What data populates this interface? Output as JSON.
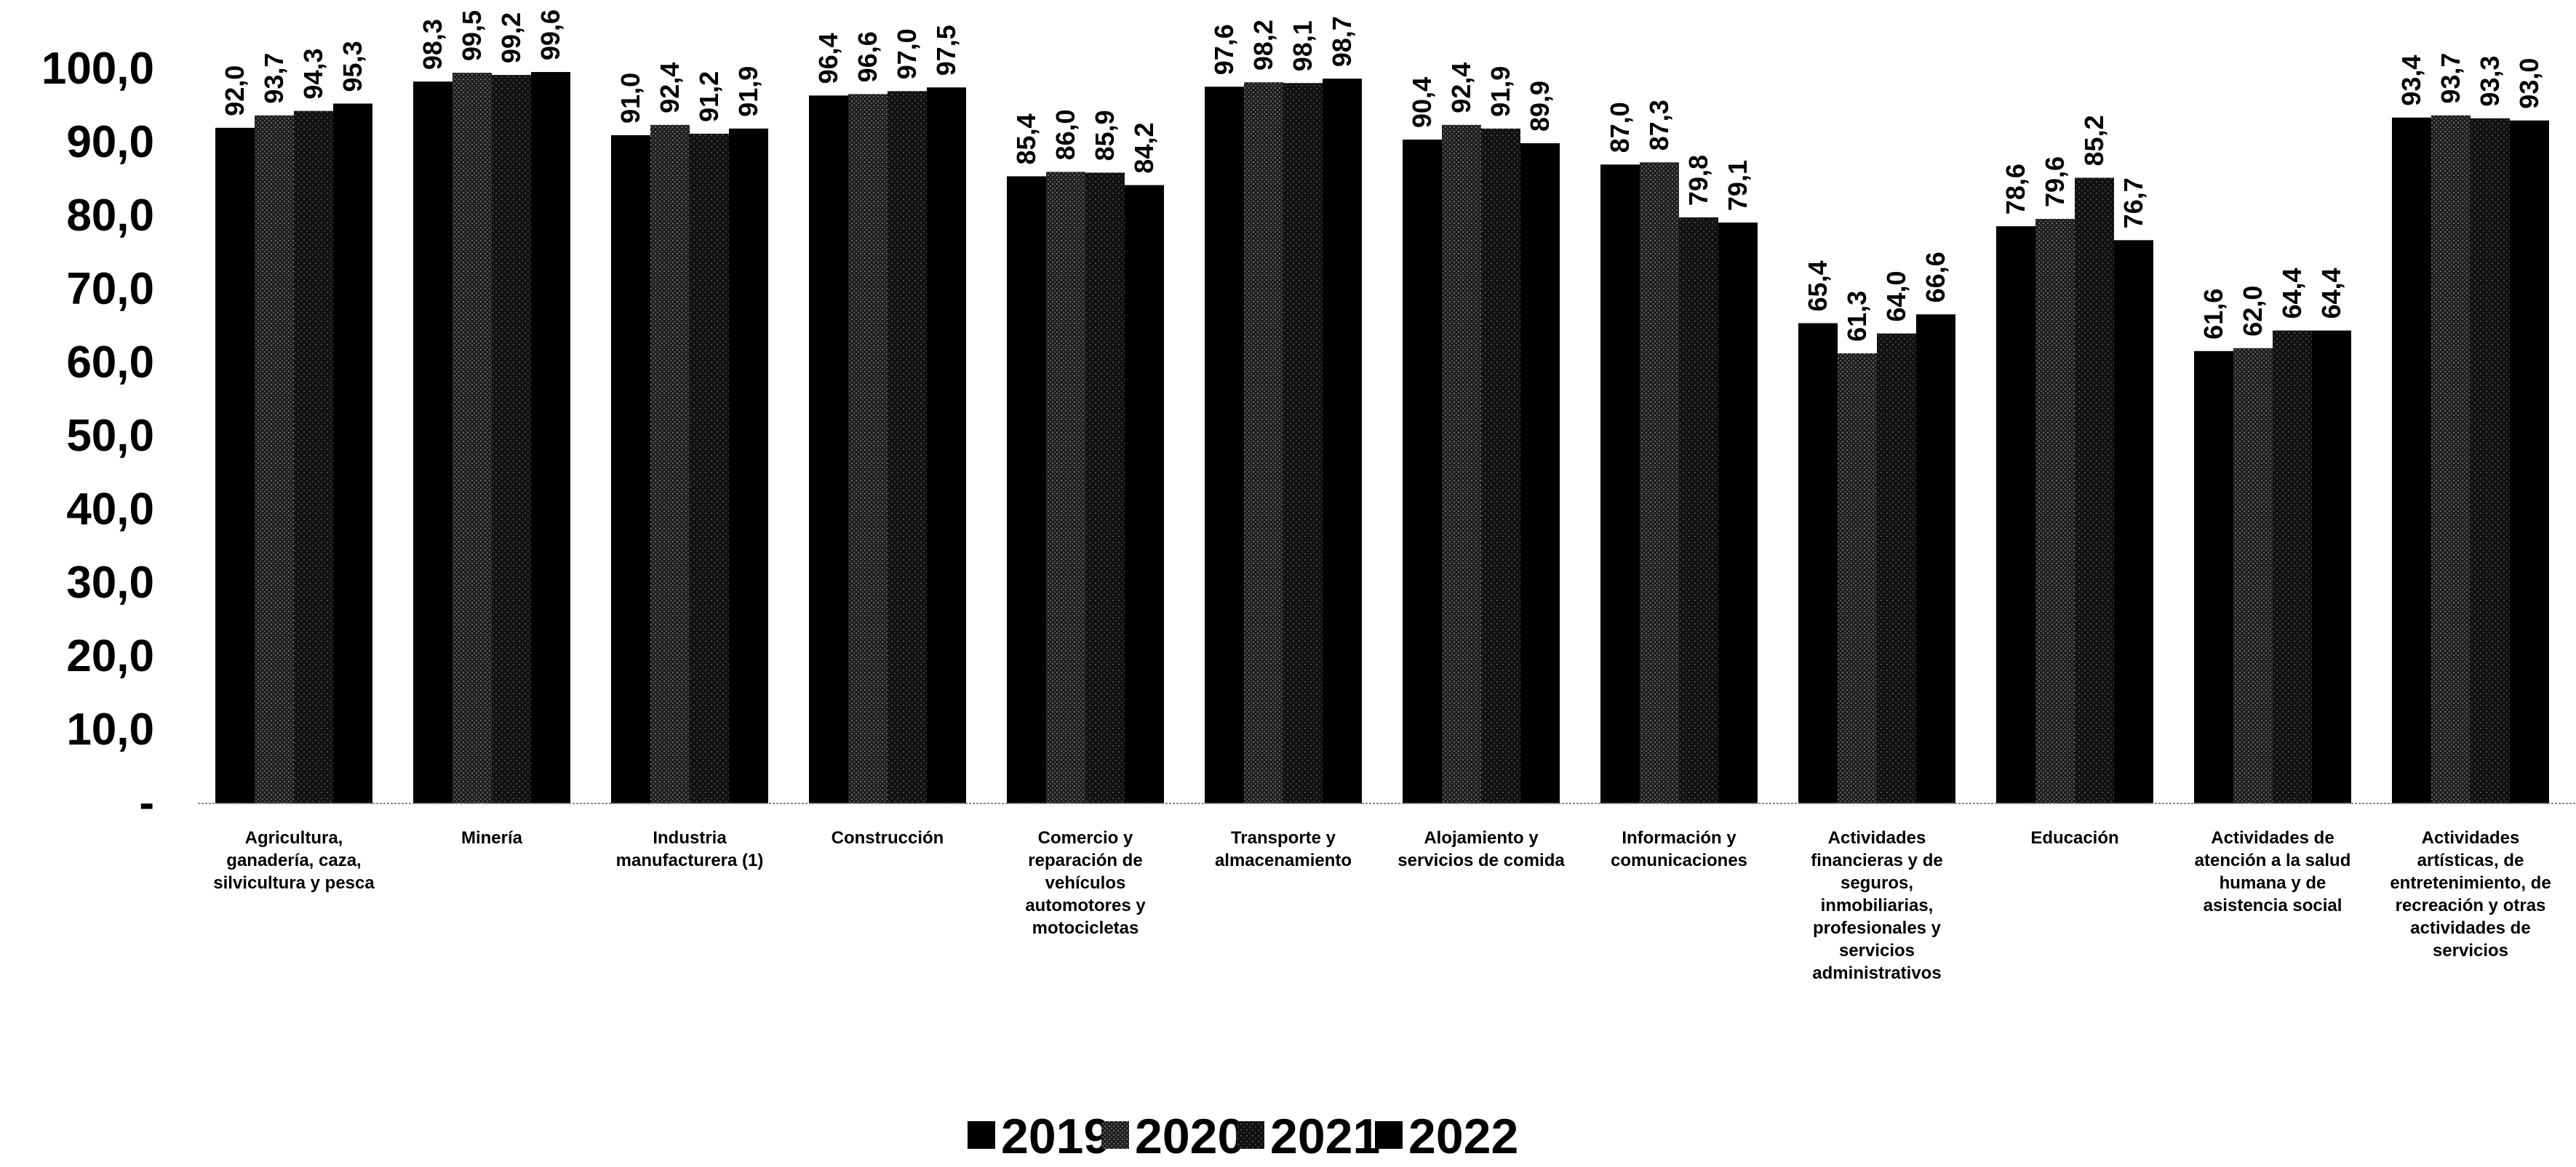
{
  "chart_data": {
    "type": "bar",
    "categories": [
      [
        "Agricultura,",
        "ganadería, caza,",
        "silvicultura y pesca"
      ],
      [
        "Minería"
      ],
      [
        "Industria",
        "manufacturera (1)"
      ],
      [
        "Construcción"
      ],
      [
        "Comercio y",
        "reparación de",
        "vehículos",
        "automotores y",
        "motocicletas"
      ],
      [
        "Transporte y",
        "almacenamiento"
      ],
      [
        "Alojamiento y",
        "servicios de comida"
      ],
      [
        "Información y",
        "comunicaciones"
      ],
      [
        "Actividades",
        "financieras y de",
        "seguros,",
        "inmobiliarias,",
        "profesionales y",
        "servicios",
        "administrativos"
      ],
      [
        "Educación"
      ],
      [
        "Actividades de",
        "atención a la salud",
        "humana y de",
        "asistencia social"
      ],
      [
        "Actividades",
        "artísticas, de",
        "entretenimiento, de",
        "recreación y otras",
        "actividades de",
        "servicios"
      ]
    ],
    "series": [
      {
        "name": "2019",
        "values": [
          92.0,
          98.3,
          91.0,
          96.4,
          85.4,
          97.6,
          90.4,
          87.0,
          65.4,
          78.6,
          61.6,
          93.4
        ],
        "labels": [
          "92,0",
          "98,3",
          "91,0",
          "96,4",
          "85,4",
          "97,6",
          "90,4",
          "87,0",
          "65,4",
          "78,6",
          "61,6",
          "93,4"
        ]
      },
      {
        "name": "2020",
        "values": [
          93.7,
          99.5,
          92.4,
          96.6,
          86.0,
          98.2,
          92.4,
          87.3,
          61.3,
          79.6,
          62.0,
          93.7
        ],
        "labels": [
          "93,7",
          "99,5",
          "92,4",
          "96,6",
          "86,0",
          "98,2",
          "92,4",
          "87,3",
          "61,3",
          "79,6",
          "62,0",
          "93,7"
        ]
      },
      {
        "name": "2021",
        "values": [
          94.3,
          99.2,
          91.2,
          97.0,
          85.9,
          98.1,
          91.9,
          79.8,
          64.0,
          85.2,
          64.4,
          93.3
        ],
        "labels": [
          "94,3",
          "99,2",
          "91,2",
          "97,0",
          "85,9",
          "98,1",
          "91,9",
          "79,8",
          "64,0",
          "85,2",
          "64,4",
          "93,3"
        ]
      },
      {
        "name": "2022",
        "values": [
          95.3,
          99.6,
          91.9,
          97.5,
          84.2,
          98.7,
          89.9,
          79.1,
          66.6,
          76.7,
          64.4,
          93.0
        ],
        "labels": [
          "95,3",
          "99,6",
          "91,9",
          "97,5",
          "84,2",
          "98,7",
          "89,9",
          "79,1",
          "66,6",
          "76,7",
          "64,4",
          "93,0"
        ]
      }
    ],
    "yticks": [
      "-",
      "10,0",
      "20,0",
      "30,0",
      "40,0",
      "50,0",
      "60,0",
      "70,0",
      "80,0",
      "90,0",
      "100,0"
    ],
    "ylim": [
      0,
      100
    ],
    "grid": false,
    "legend_position": "bottom-center",
    "title": "",
    "xlabel": "",
    "ylabel": "",
    "colors": {
      "2019": "#000000",
      "2020": "#2b2b2b",
      "2021": "#1a1a1a",
      "2022": "#000000"
    }
  }
}
